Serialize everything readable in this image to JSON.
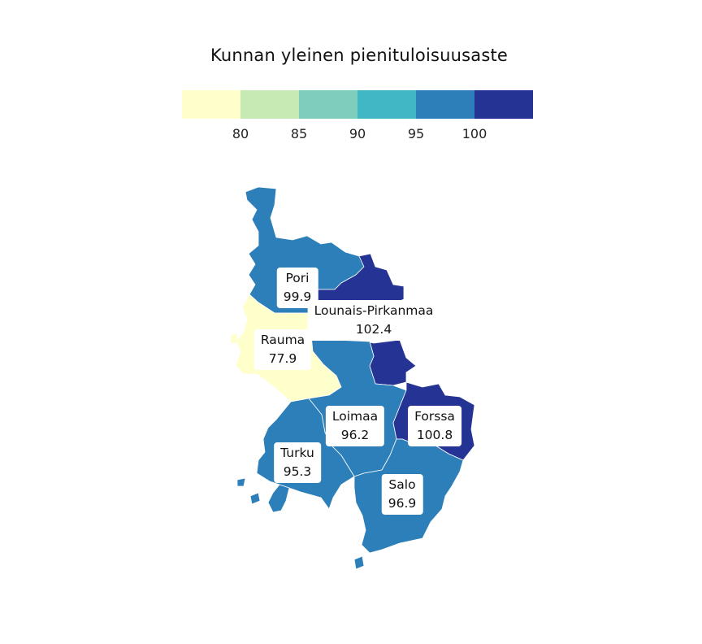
{
  "title": "Kunnan yleinen pienituloisuusaste",
  "legend": {
    "colors": [
      "#ffffcc",
      "#c7e9b4",
      "#7fcdbb",
      "#41b6c4",
      "#2c7fb8",
      "#253494"
    ],
    "ticks": [
      "80",
      "85",
      "90",
      "95",
      "100"
    ]
  },
  "regions": [
    {
      "name": "Pori",
      "value": "99.9",
      "color": "#2c7fb8"
    },
    {
      "name": "Lounais-Pirkanmaa",
      "value": "102.4",
      "color": "#253494"
    },
    {
      "name": "Rauma",
      "value": "77.9",
      "color": "#ffffcc"
    },
    {
      "name": "Loimaa",
      "value": "96.2",
      "color": "#2c7fb8"
    },
    {
      "name": "Forssa",
      "value": "100.8",
      "color": "#253494"
    },
    {
      "name": "Turku",
      "value": "95.3",
      "color": "#2c7fb8"
    },
    {
      "name": "Salo",
      "value": "96.9",
      "color": "#2c7fb8"
    }
  ]
}
